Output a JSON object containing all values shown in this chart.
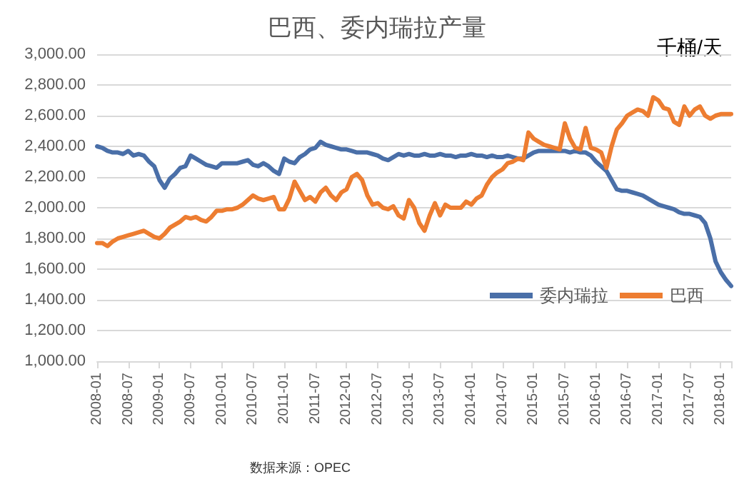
{
  "chart_data": {
    "type": "line",
    "title": "巴西、委内瑞拉产量",
    "ylabel": "千桶/天",
    "annotations": [
      "数据来源：OPEC"
    ],
    "categories": [
      "2008-01",
      null,
      null,
      null,
      null,
      null,
      "2008-07",
      null,
      null,
      null,
      null,
      null,
      "2009-01",
      null,
      null,
      null,
      null,
      null,
      "2009-07",
      null,
      null,
      null,
      null,
      null,
      "2010-01",
      null,
      null,
      null,
      null,
      null,
      "2010-07",
      null,
      null,
      null,
      null,
      null,
      "2011-01",
      null,
      null,
      null,
      null,
      null,
      "2011-07",
      null,
      null,
      null,
      null,
      null,
      "2012-01",
      null,
      null,
      null,
      null,
      null,
      "2012-07",
      null,
      null,
      null,
      null,
      null,
      "2013-01",
      null,
      null,
      null,
      null,
      null,
      "2013-07",
      null,
      null,
      null,
      null,
      null,
      "2014-01",
      null,
      null,
      null,
      null,
      null,
      "2014-07",
      null,
      null,
      null,
      null,
      null,
      "2015-01",
      null,
      null,
      null,
      null,
      null,
      "2015-07",
      null,
      null,
      null,
      null,
      null,
      "2016-01",
      null,
      null,
      null,
      null,
      null,
      "2016-07",
      null,
      null,
      null,
      null,
      null,
      "2017-01",
      null,
      null,
      null,
      null,
      null,
      "2017-07",
      null,
      null,
      null,
      null,
      null,
      "2018-01",
      null,
      null
    ],
    "series": [
      {
        "name": "委内瑞拉",
        "color": "#4a6fa8",
        "values": [
          2400,
          2390,
          2370,
          2360,
          2360,
          2350,
          2370,
          2340,
          2350,
          2340,
          2300,
          2270,
          2180,
          2130,
          2190,
          2220,
          2260,
          2270,
          2340,
          2320,
          2300,
          2280,
          2270,
          2260,
          2290,
          2290,
          2290,
          2290,
          2300,
          2310,
          2280,
          2270,
          2290,
          2270,
          2240,
          2220,
          2320,
          2300,
          2290,
          2330,
          2350,
          2380,
          2390,
          2430,
          2410,
          2400,
          2390,
          2380,
          2380,
          2370,
          2360,
          2360,
          2360,
          2350,
          2340,
          2320,
          2310,
          2330,
          2350,
          2340,
          2350,
          2340,
          2340,
          2350,
          2340,
          2340,
          2350,
          2340,
          2340,
          2330,
          2340,
          2340,
          2350,
          2340,
          2340,
          2330,
          2340,
          2330,
          2330,
          2340,
          2330,
          2320,
          2320,
          2340,
          2360,
          2370,
          2370,
          2370,
          2370,
          2370,
          2370,
          2360,
          2370,
          2360,
          2360,
          2340,
          2300,
          2270,
          2240,
          2180,
          2120,
          2110,
          2110,
          2100,
          2090,
          2080,
          2060,
          2040,
          2020,
          2010,
          2000,
          1990,
          1970,
          1960,
          1960,
          1950,
          1940,
          1900,
          1800,
          1650,
          1580,
          1530,
          1490
        ]
      },
      {
        "name": "巴西",
        "color": "#ed7d31",
        "values": [
          1770,
          1770,
          1750,
          1780,
          1800,
          1810,
          1820,
          1830,
          1840,
          1850,
          1830,
          1810,
          1800,
          1830,
          1870,
          1890,
          1910,
          1940,
          1930,
          1940,
          1920,
          1910,
          1940,
          1980,
          1980,
          1990,
          1990,
          2000,
          2020,
          2050,
          2080,
          2060,
          2050,
          2060,
          2070,
          1990,
          1990,
          2060,
          2170,
          2110,
          2050,
          2070,
          2040,
          2100,
          2130,
          2080,
          2050,
          2100,
          2120,
          2200,
          2220,
          2180,
          2080,
          2020,
          2030,
          2000,
          1990,
          2010,
          1950,
          1930,
          2050,
          2000,
          1900,
          1850,
          1950,
          2030,
          1950,
          2020,
          2000,
          2000,
          2000,
          2040,
          2020,
          2060,
          2080,
          2150,
          2200,
          2230,
          2250,
          2290,
          2300,
          2320,
          2310,
          2490,
          2450,
          2430,
          2410,
          2400,
          2390,
          2380,
          2550,
          2450,
          2390,
          2380,
          2520,
          2390,
          2380,
          2360,
          2260,
          2400,
          2510,
          2550,
          2600,
          2620,
          2640,
          2630,
          2600,
          2720,
          2700,
          2650,
          2640,
          2560,
          2540,
          2660,
          2600,
          2640,
          2660,
          2600,
          2580,
          2600,
          2610,
          2610,
          2610
        ]
      }
    ],
    "ylim": [
      1000,
      3000
    ],
    "yticks": [
      {
        "value": 1000,
        "label": "1,000.00"
      },
      {
        "value": 1200,
        "label": "1,200.00"
      },
      {
        "value": 1400,
        "label": "1,400.00"
      },
      {
        "value": 1600,
        "label": "1,600.00"
      },
      {
        "value": 1800,
        "label": "1,800.00"
      },
      {
        "value": 2000,
        "label": "2,000.00"
      },
      {
        "value": 2200,
        "label": "2,200.00"
      },
      {
        "value": 2400,
        "label": "2,400.00"
      },
      {
        "value": 2600,
        "label": "2,600.00"
      },
      {
        "value": 2800,
        "label": "2,800.00"
      },
      {
        "value": 3000,
        "label": "3,000.00"
      }
    ],
    "grid": "y",
    "legend": "bottom right",
    "marker": "none",
    "line_style": "solid"
  }
}
